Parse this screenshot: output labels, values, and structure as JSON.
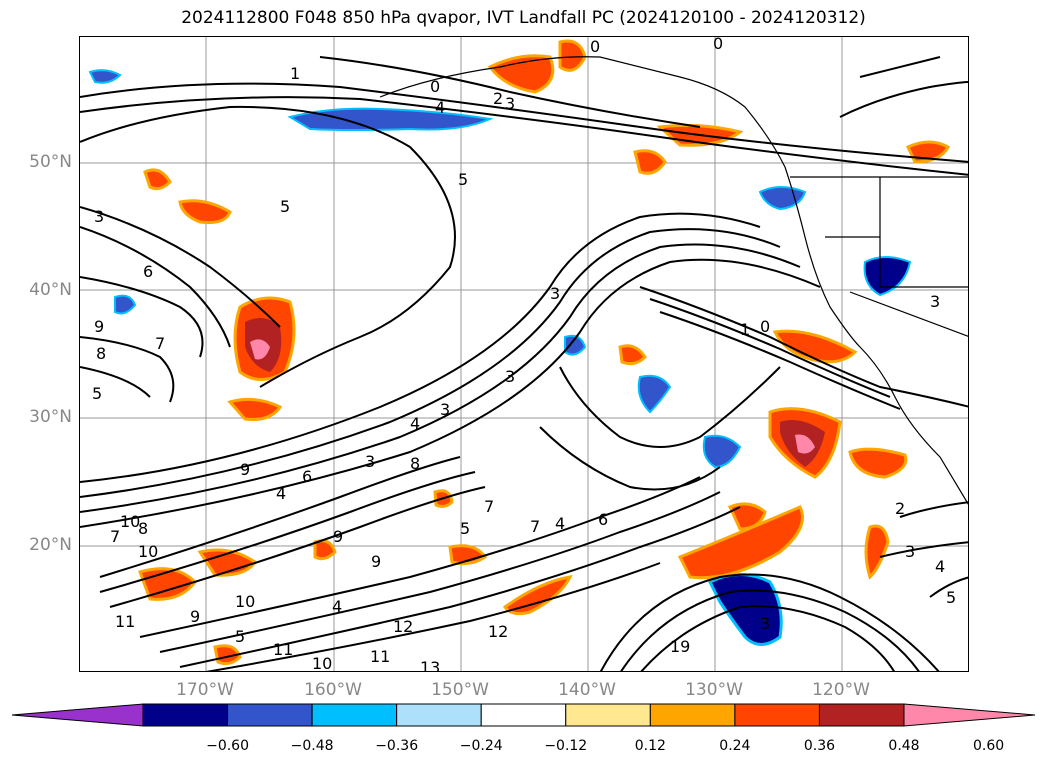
{
  "title": "2024112800 F048 850 hPa qvapor, IVT Landfall PC (2024120100 - 2024120312)",
  "lat_labels": [
    "50°N",
    "40°N",
    "30°N",
    "20°N"
  ],
  "lon_labels": [
    "170°W",
    "160°W",
    "150°W",
    "140°W",
    "130°W",
    "120°W"
  ],
  "colorbar": {
    "ticks": [
      "−0.60",
      "−0.48",
      "−0.36",
      "−0.24",
      "−0.12",
      "0.12",
      "0.24",
      "0.36",
      "0.48",
      "0.60"
    ],
    "colors": [
      "#9932CC",
      "#00008B",
      "#3355CC",
      "#00BFFF",
      "#ADE0FA",
      "#FFFFFF",
      "#FFE88F",
      "#FFA500",
      "#FF4500",
      "#B22222",
      "#FF88AA"
    ]
  },
  "contour_labels": [
    "1",
    "0",
    "4",
    "2",
    "3",
    "0",
    "0",
    "5",
    "5",
    "3",
    "6",
    "9",
    "8",
    "7",
    "5",
    "3",
    "3",
    "1",
    "0",
    "3",
    "4",
    "3",
    "8",
    "9",
    "4",
    "6",
    "10",
    "7",
    "8",
    "10",
    "9",
    "9",
    "9",
    "10",
    "11",
    "5",
    "4",
    "12",
    "11",
    "10",
    "11",
    "13",
    "12",
    "19",
    "7",
    "5",
    "7",
    "4",
    "6",
    "3",
    "2",
    "3",
    "4",
    "3",
    "5"
  ]
}
